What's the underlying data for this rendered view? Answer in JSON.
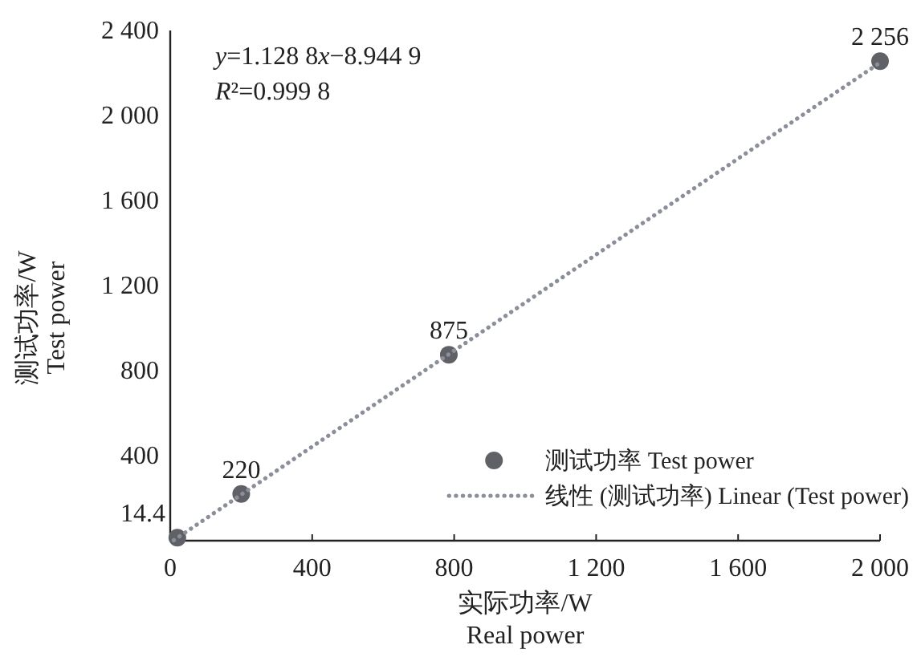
{
  "chart_data": {
    "type": "scatter",
    "xlabel": "实际功率/W\nReal power",
    "ylabel": "测试功率/W\nTest power",
    "annotations": [
      "y=1.128 8x−8.944 9",
      "R²=0.999 8"
    ],
    "xlim": [
      0,
      2000
    ],
    "ylim": [
      0,
      2400
    ],
    "xticks": [
      0,
      400,
      800,
      {
        "value": 1200,
        "label": "1 200"
      },
      {
        "value": 1600,
        "label": "1 600"
      },
      {
        "value": 2000,
        "label": "2 000"
      }
    ],
    "yticks": [
      400,
      800,
      {
        "value": 1200,
        "label": "1 200"
      },
      {
        "value": 1600,
        "label": "1 600"
      },
      {
        "value": 2000,
        "label": "2 000"
      },
      {
        "value": 2400,
        "label": "2 400"
      }
    ],
    "legend": "bottom right",
    "grid": false,
    "series": [
      {
        "name": "测试功率 Test power",
        "marker": "circle",
        "color": "#5f6166",
        "x": [
          20,
          200,
          785,
          2000
        ],
        "values": [
          14.4,
          220,
          875,
          2256
        ],
        "value_labels": [
          "14.4",
          "220",
          "875",
          "2 256"
        ]
      },
      {
        "name": "线性 (测试功率) Linear (Test power)",
        "type": "line",
        "line_style": "dotted",
        "color": "#8a8f99",
        "x": [
          10,
          2000
        ],
        "values": [
          2,
          2249
        ]
      }
    ]
  }
}
